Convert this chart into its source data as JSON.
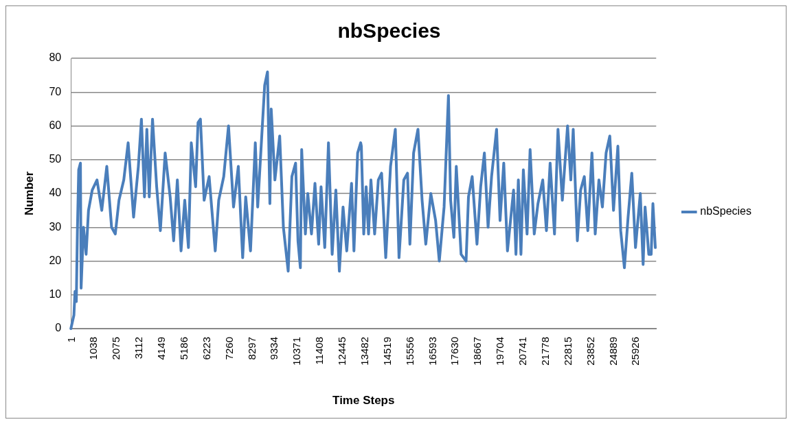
{
  "chart_data": {
    "type": "line",
    "title": "nbSpecies",
    "xlabel": "Time Steps",
    "ylabel": "Number",
    "xlim": [
      1,
      26880
    ],
    "xticks": [
      1,
      1038,
      2075,
      3112,
      4149,
      5186,
      6223,
      7260,
      8297,
      9334,
      10371,
      11408,
      12445,
      13482,
      14519,
      15556,
      16593,
      17630,
      18667,
      19704,
      20741,
      21778,
      22815,
      23852,
      24889,
      25926
    ],
    "ylim": [
      0,
      80
    ],
    "yticks": [
      0,
      10,
      20,
      30,
      40,
      50,
      60,
      70,
      80
    ],
    "grid": "y",
    "legend": "right",
    "marker": "none",
    "series": [
      {
        "name": "nbSpecies",
        "color": "#4a7ebb",
        "x": [
          1,
          140,
          190,
          250,
          300,
          360,
          440,
          470,
          580,
          700,
          810,
          980,
          1200,
          1420,
          1650,
          1870,
          2040,
          2210,
          2430,
          2630,
          2880,
          3100,
          3240,
          3380,
          3490,
          3600,
          3750,
          3940,
          4110,
          4330,
          4560,
          4720,
          4890,
          5060,
          5230,
          5400,
          5530,
          5730,
          5840,
          5950,
          6120,
          6350,
          6630,
          6790,
          7020,
          7240,
          7470,
          7690,
          7890,
          8030,
          8250,
          8470,
          8580,
          8900,
          9030,
          9140,
          9200,
          9370,
          9590,
          9760,
          9980,
          10150,
          10320,
          10430,
          10540,
          10600,
          10770,
          10880,
          11050,
          11210,
          11380,
          11490,
          11660,
          11830,
          12000,
          12170,
          12330,
          12500,
          12670,
          12890,
          13000,
          13170,
          13310,
          13340,
          13450,
          13560,
          13670,
          13780,
          13950,
          14120,
          14270,
          14460,
          14680,
          14900,
          15070,
          15290,
          15460,
          15570,
          15740,
          15940,
          16130,
          16300,
          16530,
          16750,
          16920,
          17140,
          17340,
          17440,
          17590,
          17700,
          17920,
          18150,
          18260,
          18430,
          18650,
          18820,
          18990,
          19160,
          19320,
          19550,
          19710,
          19880,
          20050,
          20330,
          20440,
          20550,
          20670,
          20780,
          20950,
          21090,
          21280,
          21450,
          21670,
          21840,
          22010,
          22210,
          22370,
          22570,
          22810,
          22960,
          23070,
          23260,
          23410,
          23580,
          23740,
          23930,
          24080,
          24250,
          24410,
          24580,
          24750,
          24920,
          25120,
          25250,
          25420,
          25590,
          25760,
          25930,
          26150,
          26280,
          26370,
          26540,
          26650,
          26730,
          26840
        ],
        "values": [
          0,
          4,
          11,
          8,
          29,
          47,
          49,
          12,
          30,
          22,
          35,
          41,
          44,
          35,
          48,
          30,
          28,
          38,
          44,
          55,
          33,
          48,
          62,
          39,
          59,
          39,
          62,
          42,
          29,
          52,
          39,
          26,
          44,
          23,
          38,
          24,
          55,
          42,
          61,
          62,
          38,
          45,
          23,
          38,
          45,
          60,
          36,
          48,
          21,
          39,
          23,
          55,
          36,
          72,
          76,
          37,
          65,
          44,
          57,
          30,
          17,
          45,
          49,
          26,
          18,
          53,
          28,
          40,
          28,
          43,
          25,
          42,
          24,
          55,
          22,
          41,
          17,
          36,
          23,
          43,
          23,
          52,
          55,
          54,
          28,
          42,
          28,
          44,
          28,
          44,
          46,
          21,
          48,
          59,
          21,
          44,
          46,
          25,
          52,
          59,
          38,
          25,
          40,
          32,
          20,
          36,
          69,
          38,
          27,
          48,
          22,
          20,
          39,
          45,
          25,
          42,
          52,
          30,
          45,
          59,
          32,
          49,
          23,
          41,
          22,
          44,
          22,
          47,
          28,
          53,
          28,
          37,
          44,
          29,
          49,
          28,
          59,
          38,
          60,
          44,
          59,
          26,
          41,
          45,
          29,
          52,
          28,
          44,
          36,
          52,
          57,
          35,
          54,
          29,
          18,
          33,
          46,
          24,
          40,
          19,
          36,
          22,
          22,
          37,
          24
        ]
      }
    ]
  }
}
